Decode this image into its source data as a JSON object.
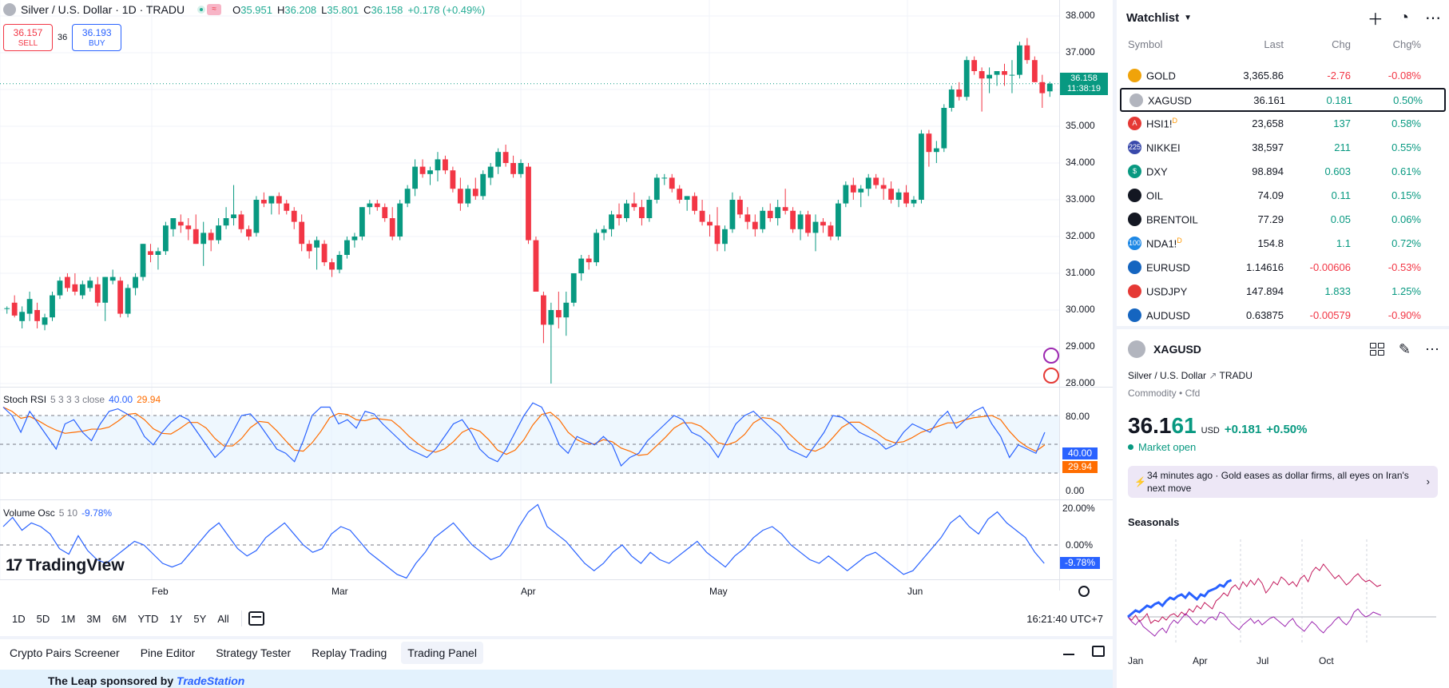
{
  "chart": {
    "title": "Silver / U.S. Dollar · 1D · TRADU",
    "tag_icon": "≈",
    "ohlc": {
      "o_k": "O",
      "o": "35.951",
      "h_k": "H",
      "h": "36.208",
      "l_k": "L",
      "l": "35.801",
      "c_k": "C",
      "c": "36.158",
      "chg": "+0.178 (+0.49%)"
    },
    "sell": {
      "price": "36.157",
      "label": "SELL"
    },
    "spread": "36",
    "buy": {
      "price": "36.193",
      "label": "BUY"
    },
    "price_axis": [
      "38.000",
      "37.000",
      "36.000",
      "35.000",
      "34.000",
      "33.000",
      "32.000",
      "31.000",
      "30.000",
      "29.000",
      "28.000"
    ],
    "last_price": "36.158",
    "countdown": "11:38:19",
    "stoch": {
      "name": "Stoch RSI",
      "params": "5 3 3 3 close",
      "k": "40.00",
      "d": "29.94",
      "axis": [
        "80.00",
        "0.00"
      ],
      "k_color": "#2962ff",
      "d_color": "#ff6d00"
    },
    "vosc": {
      "name": "Volume Osc",
      "params": "5 10",
      "value": "-9.78%",
      "axis": [
        "20.00%",
        "0.00%"
      ]
    },
    "logo": "TradingView",
    "time_axis": [
      "Feb",
      "Mar",
      "Apr",
      "May",
      "Jun"
    ],
    "ranges": [
      "1D",
      "5D",
      "1M",
      "3M",
      "6M",
      "YTD",
      "1Y",
      "5Y",
      "All"
    ],
    "clock": "16:21:40 UTC+7"
  },
  "bottom_tabs": [
    "Crypto Pairs Screener",
    "Pine Editor",
    "Strategy Tester",
    "Replay Trading",
    "Trading Panel"
  ],
  "sponsor": {
    "text": "The Leap sponsored by",
    "brand": "TradeStation"
  },
  "watchlist": {
    "title": "Watchlist",
    "cols": [
      "Symbol",
      "Last",
      "Chg",
      "Chg%"
    ],
    "rows": [
      {
        "sym": "GOLD",
        "sup": "",
        "last": "3,365.86",
        "chg": "-2.76",
        "chgp": "-0.08%",
        "dir": "dn",
        "color": "#f0a30a",
        "icon": ""
      },
      {
        "sym": "XAGUSD",
        "sup": "",
        "last": "36.161",
        "chg": "0.181",
        "chgp": "0.50%",
        "dir": "up",
        "color": "#b2b5be",
        "icon": ""
      },
      {
        "sym": "HSI1!",
        "sup": "D",
        "last": "23,658",
        "chg": "137",
        "chgp": "0.58%",
        "dir": "up",
        "color": "#e53935",
        "icon": "A"
      },
      {
        "sym": "NIKKEI",
        "sup": "",
        "last": "38,597",
        "chg": "211",
        "chgp": "0.55%",
        "dir": "up",
        "color": "#3949ab",
        "icon": "225"
      },
      {
        "sym": "DXY",
        "sup": "",
        "last": "98.894",
        "chg": "0.603",
        "chgp": "0.61%",
        "dir": "up",
        "color": "#089981",
        "icon": "$"
      },
      {
        "sym": "OIL",
        "sup": "",
        "last": "74.09",
        "chg": "0.11",
        "chgp": "0.15%",
        "dir": "up",
        "color": "#131722",
        "icon": ""
      },
      {
        "sym": "BRENTOIL",
        "sup": "",
        "last": "77.29",
        "chg": "0.05",
        "chgp": "0.06%",
        "dir": "up",
        "color": "#131722",
        "icon": ""
      },
      {
        "sym": "NDA1!",
        "sup": "D",
        "last": "154.8",
        "chg": "1.1",
        "chgp": "0.72%",
        "dir": "up",
        "color": "#1e88e5",
        "icon": "100"
      },
      {
        "sym": "EURUSD",
        "sup": "",
        "last": "1.14616",
        "chg": "-0.00606",
        "chgp": "-0.53%",
        "dir": "dn",
        "color": "#1565c0",
        "icon": ""
      },
      {
        "sym": "USDJPY",
        "sup": "",
        "last": "147.894",
        "chg": "1.833",
        "chgp": "1.25%",
        "dir": "up",
        "color": "#e53935",
        "icon": ""
      },
      {
        "sym": "AUDUSD",
        "sup": "",
        "last": "0.63875",
        "chg": "-0.00579",
        "chgp": "-0.90%",
        "dir": "dn",
        "color": "#1565c0",
        "icon": ""
      }
    ]
  },
  "details": {
    "symbol": "XAGUSD",
    "name": "Silver / U.S. Dollar",
    "exchange": "TRADU",
    "category": "Commodity",
    "subcat": "Cfd",
    "price_main": "36.1",
    "price_tail": "61",
    "currency": "USD",
    "change": "+0.181",
    "change_pct": "+0.50%",
    "status": "Market open",
    "news_time": "34 minutes ago",
    "news_text": "Gold eases as dollar firms, all eyes on Iran's next move",
    "seasonals_title": "Seasonals",
    "seasonals_axis": [
      "Jan",
      "Apr",
      "Jul",
      "Oct"
    ]
  },
  "candles": [
    [
      30.05,
      30.1,
      29.9,
      30.05
    ],
    [
      30.2,
      30.4,
      29.8,
      29.85
    ],
    [
      29.7,
      30.1,
      29.5,
      29.95
    ],
    [
      29.9,
      30.5,
      29.7,
      30.3
    ],
    [
      30.0,
      30.2,
      29.5,
      29.7
    ],
    [
      29.6,
      29.9,
      29.45,
      29.8
    ],
    [
      29.8,
      30.5,
      29.7,
      30.4
    ],
    [
      30.4,
      30.9,
      30.3,
      30.8
    ],
    [
      30.9,
      31.0,
      30.5,
      30.6
    ],
    [
      30.7,
      31.0,
      30.4,
      30.5
    ],
    [
      30.4,
      30.8,
      30.3,
      30.7
    ],
    [
      30.6,
      30.9,
      30.5,
      30.8
    ],
    [
      30.7,
      30.9,
      30.1,
      30.2
    ],
    [
      30.2,
      30.9,
      29.7,
      30.9
    ],
    [
      30.8,
      31.1,
      30.7,
      30.9
    ],
    [
      30.8,
      30.9,
      29.8,
      29.9
    ],
    [
      29.9,
      30.7,
      29.8,
      30.6
    ],
    [
      30.6,
      31.0,
      30.4,
      30.9
    ],
    [
      30.9,
      31.8,
      30.8,
      31.8
    ],
    [
      31.6,
      31.8,
      31.3,
      31.5
    ],
    [
      31.5,
      31.7,
      31.1,
      31.6
    ],
    [
      31.6,
      32.4,
      31.5,
      32.3
    ],
    [
      32.2,
      32.5,
      32.0,
      32.5
    ],
    [
      32.4,
      32.6,
      32.1,
      32.3
    ],
    [
      32.3,
      32.5,
      31.9,
      32.2
    ],
    [
      32.2,
      32.6,
      31.8,
      31.8
    ],
    [
      31.8,
      32.4,
      31.2,
      32.1
    ],
    [
      32.1,
      32.2,
      31.6,
      31.9
    ],
    [
      31.9,
      32.5,
      31.8,
      32.3
    ],
    [
      32.3,
      32.8,
      32.2,
      32.5
    ],
    [
      32.5,
      33.4,
      32.3,
      32.6
    ],
    [
      32.6,
      32.7,
      32.1,
      32.2
    ],
    [
      32.2,
      32.3,
      31.9,
      32.0
    ],
    [
      32.1,
      33.1,
      32.0,
      33.0
    ],
    [
      33.0,
      33.2,
      32.8,
      32.9
    ],
    [
      32.9,
      33.1,
      32.6,
      33.1
    ],
    [
      33.1,
      33.2,
      32.6,
      32.9
    ],
    [
      32.9,
      33.0,
      32.6,
      32.7
    ],
    [
      32.7,
      32.8,
      32.2,
      32.4
    ],
    [
      32.4,
      32.6,
      31.6,
      31.8
    ],
    [
      31.8,
      31.9,
      31.4,
      31.6
    ],
    [
      31.7,
      32.0,
      31.1,
      31.9
    ],
    [
      31.8,
      31.9,
      31.2,
      31.3
    ],
    [
      31.3,
      31.4,
      30.9,
      31.1
    ],
    [
      31.1,
      31.6,
      31.0,
      31.5
    ],
    [
      31.5,
      32.0,
      31.4,
      31.9
    ],
    [
      31.9,
      32.1,
      31.7,
      32.0
    ],
    [
      32.0,
      32.8,
      31.9,
      32.8
    ],
    [
      32.8,
      33.0,
      32.6,
      32.9
    ],
    [
      32.9,
      33.0,
      32.7,
      32.8
    ],
    [
      32.8,
      32.9,
      32.4,
      32.5
    ],
    [
      32.5,
      32.8,
      31.9,
      32.0
    ],
    [
      32.0,
      33.0,
      31.9,
      32.9
    ],
    [
      32.9,
      33.4,
      32.8,
      33.3
    ],
    [
      33.3,
      34.1,
      33.1,
      33.9
    ],
    [
      33.9,
      34.1,
      33.6,
      33.7
    ],
    [
      33.7,
      33.9,
      33.4,
      33.8
    ],
    [
      33.8,
      34.3,
      33.5,
      34.1
    ],
    [
      34.1,
      34.2,
      33.7,
      33.8
    ],
    [
      33.8,
      33.9,
      33.2,
      33.3
    ],
    [
      33.3,
      33.6,
      32.7,
      32.9
    ],
    [
      32.9,
      33.4,
      32.8,
      33.3
    ],
    [
      33.3,
      33.6,
      33.0,
      33.1
    ],
    [
      33.1,
      33.8,
      33.0,
      33.7
    ],
    [
      33.6,
      34.0,
      33.4,
      33.9
    ],
    [
      33.9,
      34.4,
      33.7,
      34.3
    ],
    [
      34.3,
      34.5,
      33.9,
      34.0
    ],
    [
      34.0,
      34.2,
      33.6,
      33.7
    ],
    [
      33.7,
      34.1,
      33.6,
      34.0
    ],
    [
      33.9,
      34.0,
      31.8,
      31.9
    ],
    [
      31.9,
      32.0,
      30.5,
      30.5
    ],
    [
      30.4,
      30.5,
      29.1,
      29.6
    ],
    [
      29.6,
      30.2,
      28.0,
      30.0
    ],
    [
      30.0,
      30.5,
      29.5,
      29.8
    ],
    [
      29.8,
      30.5,
      29.3,
      30.2
    ],
    [
      30.2,
      31.0,
      30.1,
      31.0
    ],
    [
      31.0,
      31.5,
      30.8,
      31.4
    ],
    [
      31.4,
      31.5,
      31.1,
      31.3
    ],
    [
      31.3,
      32.2,
      31.2,
      32.1
    ],
    [
      32.1,
      32.3,
      31.9,
      32.2
    ],
    [
      32.2,
      32.7,
      32.0,
      32.6
    ],
    [
      32.6,
      32.9,
      32.3,
      32.5
    ],
    [
      32.5,
      33.0,
      32.4,
      32.9
    ],
    [
      32.9,
      33.2,
      32.7,
      32.8
    ],
    [
      32.8,
      33.0,
      32.3,
      32.5
    ],
    [
      32.5,
      33.1,
      32.4,
      33.0
    ],
    [
      33.0,
      33.7,
      32.9,
      33.6
    ],
    [
      33.6,
      33.7,
      33.4,
      33.6
    ],
    [
      33.6,
      33.7,
      33.2,
      33.3
    ],
    [
      33.3,
      33.4,
      32.9,
      33.0
    ],
    [
      33.0,
      33.1,
      32.7,
      33.1
    ],
    [
      33.1,
      33.2,
      32.6,
      32.7
    ],
    [
      32.7,
      33.0,
      32.3,
      32.4
    ],
    [
      32.4,
      32.6,
      32.0,
      32.3
    ],
    [
      32.3,
      32.8,
      31.6,
      31.8
    ],
    [
      31.8,
      32.3,
      31.6,
      32.2
    ],
    [
      32.2,
      33.2,
      32.1,
      33.0
    ],
    [
      33.0,
      33.1,
      32.5,
      32.6
    ],
    [
      32.6,
      32.8,
      32.2,
      32.4
    ],
    [
      32.4,
      32.6,
      32.0,
      32.2
    ],
    [
      32.2,
      32.8,
      32.1,
      32.7
    ],
    [
      32.7,
      32.9,
      32.4,
      32.5
    ],
    [
      32.5,
      33.0,
      32.3,
      32.8
    ],
    [
      32.8,
      33.3,
      32.6,
      32.7
    ],
    [
      32.7,
      32.8,
      32.1,
      32.2
    ],
    [
      32.2,
      32.7,
      31.9,
      32.6
    ],
    [
      32.6,
      32.7,
      32.0,
      32.1
    ],
    [
      32.1,
      32.6,
      31.6,
      32.4
    ],
    [
      32.4,
      32.5,
      32.1,
      32.3
    ],
    [
      32.3,
      32.4,
      31.9,
      32.0
    ],
    [
      32.0,
      33.0,
      31.9,
      32.9
    ],
    [
      32.9,
      33.5,
      32.8,
      33.4
    ],
    [
      33.4,
      33.6,
      33.0,
      33.2
    ],
    [
      33.2,
      33.4,
      32.8,
      33.3
    ],
    [
      33.3,
      33.7,
      33.1,
      33.6
    ],
    [
      33.6,
      33.7,
      33.3,
      33.4
    ],
    [
      33.4,
      33.6,
      33.0,
      33.3
    ],
    [
      33.3,
      33.5,
      32.9,
      33.0
    ],
    [
      33.0,
      33.3,
      32.8,
      33.2
    ],
    [
      33.2,
      33.4,
      32.8,
      32.9
    ],
    [
      32.9,
      33.1,
      32.8,
      33.0
    ],
    [
      33.0,
      34.9,
      32.9,
      34.8
    ],
    [
      34.8,
      34.9,
      33.9,
      34.3
    ],
    [
      34.3,
      34.6,
      34.0,
      34.4
    ],
    [
      34.4,
      35.6,
      34.3,
      35.5
    ],
    [
      35.5,
      36.1,
      35.4,
      36.0
    ],
    [
      36.0,
      36.2,
      35.7,
      35.8
    ],
    [
      35.8,
      36.9,
      35.7,
      36.8
    ],
    [
      36.8,
      36.9,
      36.4,
      36.5
    ],
    [
      36.5,
      36.6,
      35.4,
      36.3
    ],
    [
      36.3,
      36.6,
      35.9,
      36.4
    ],
    [
      36.4,
      36.5,
      36.1,
      36.5
    ],
    [
      36.5,
      36.7,
      36.1,
      36.4
    ],
    [
      36.4,
      36.8,
      35.9,
      36.4
    ],
    [
      36.4,
      37.3,
      36.3,
      37.2
    ],
    [
      37.2,
      37.4,
      36.7,
      36.8
    ],
    [
      36.8,
      36.9,
      36.2,
      36.2
    ],
    [
      36.2,
      36.4,
      35.5,
      35.9
    ],
    [
      35.95,
      36.21,
      35.8,
      36.16
    ]
  ]
}
